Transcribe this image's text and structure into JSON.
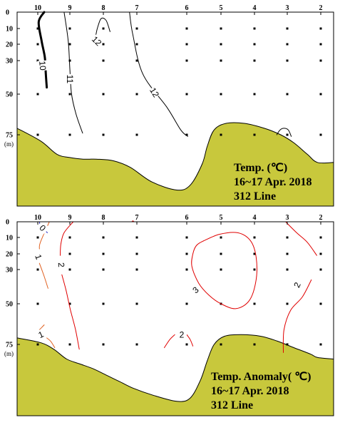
{
  "chart_data": [
    {
      "type": "contour",
      "id": "temp",
      "title_lines": [
        "Temp. (℃)",
        "16~17 Apr. 2018",
        "312 Line"
      ],
      "unit_label": "(m)",
      "stations": [
        "10",
        "9",
        "8",
        "7",
        "6",
        "5",
        "4",
        "3",
        "2"
      ],
      "depth_ticks": [
        "0",
        "10",
        "20",
        "30",
        "50",
        "75"
      ],
      "depths": [
        0,
        10,
        20,
        30,
        50,
        75
      ],
      "sample_depths": [
        10,
        20,
        30,
        50,
        75
      ],
      "colors": {
        "bottom": "#C8C83C",
        "contour": "#000000",
        "bold_contour": "#000000"
      },
      "contour_labels": [
        {
          "text": "10",
          "station": 9.85,
          "depth": 33,
          "rotate": 85
        },
        {
          "text": "11",
          "station": 9.0,
          "depth": 41,
          "rotate": 90
        },
        {
          "text": "12",
          "station": 8.2,
          "depth": 18,
          "rotate": 45
        },
        {
          "text": "12",
          "station": 6.65,
          "depth": 49,
          "rotate": 58
        }
      ],
      "contours": [
        {
          "level": 10,
          "bold": true,
          "points": [
            [
              10.2,
              0
            ],
            [
              10.03,
              6
            ],
            [
              9.88,
              18
            ],
            [
              9.78,
              28
            ],
            [
              9.75,
              38
            ],
            [
              9.72,
              46
            ]
          ]
        },
        {
          "level": 11,
          "points": [
            [
              9.18,
              0
            ],
            [
              9.05,
              18
            ],
            [
              9.0,
              35
            ],
            [
              8.95,
              50
            ],
            [
              8.82,
              62
            ],
            [
              8.62,
              74
            ]
          ]
        },
        {
          "level": 12,
          "points": [
            [
              7.8,
              12
            ],
            [
              7.92,
              5
            ],
            [
              8.07,
              4
            ],
            [
              8.18,
              10
            ],
            [
              8.23,
              15
            ]
          ]
        },
        {
          "level": 12,
          "points": [
            [
              7.22,
              0
            ],
            [
              7.12,
              14
            ],
            [
              6.88,
              38
            ],
            [
              6.4,
              58
            ],
            [
              6.12,
              72
            ],
            [
              5.97,
              76
            ]
          ]
        },
        {
          "level": 12,
          "points": [
            [
              3.32,
              75
            ],
            [
              3.22,
              72
            ],
            [
              3.1,
              71
            ],
            [
              2.97,
              72
            ],
            [
              2.88,
              76
            ]
          ]
        }
      ],
      "bottom_profile": [
        [
          10.3,
          71
        ],
        [
          9.9,
          79
        ],
        [
          9.4,
          87
        ],
        [
          9.0,
          89
        ],
        [
          8.6,
          90
        ],
        [
          8.2,
          90
        ],
        [
          7.7,
          91
        ],
        [
          7.2,
          95
        ],
        [
          6.7,
          104
        ],
        [
          6.2,
          109
        ],
        [
          5.9,
          106
        ],
        [
          5.55,
          93
        ],
        [
          5.4,
          82
        ],
        [
          5.2,
          72
        ],
        [
          4.85,
          68
        ],
        [
          4.3,
          68
        ],
        [
          3.7,
          71
        ],
        [
          3.2,
          75
        ],
        [
          2.8,
          80
        ],
        [
          2.4,
          87
        ],
        [
          1.9,
          92
        ],
        [
          1.72,
          92
        ]
      ]
    },
    {
      "type": "contour",
      "id": "anomaly",
      "title_lines": [
        "Temp. Anomaly( ℃)",
        "16~17 Apr. 2018",
        "312 Line"
      ],
      "unit_label": "(m)",
      "stations": [
        "10",
        "9",
        "8",
        "7",
        "6",
        "5",
        "4",
        "3",
        "2"
      ],
      "depth_ticks": [
        "0",
        "10",
        "20",
        "30",
        "50",
        "75"
      ],
      "depths": [
        0,
        10,
        20,
        30,
        50,
        75
      ],
      "sample_depths": [
        10,
        20,
        30,
        50,
        75
      ],
      "colors": {
        "bottom": "#C8C83C",
        "contour": "#E00000",
        "contour_dim": "#E06020",
        "neg": "#2020C0"
      },
      "contour_labels": [
        {
          "text": "0",
          "station": 10.15,
          "depth": 4,
          "rotate": 45
        },
        {
          "text": "1",
          "station": 10.02,
          "depth": 22,
          "rotate": 70
        },
        {
          "text": "2",
          "station": 9.27,
          "depth": 27,
          "rotate": 88
        },
        {
          "text": "3",
          "station": 5.74,
          "depth": 42,
          "rotate": -40
        },
        {
          "text": "2",
          "station": 2.7,
          "depth": 39,
          "rotate": -65
        },
        {
          "text": "1",
          "station": 9.9,
          "depth": 69,
          "rotate": -25
        },
        {
          "text": "2",
          "station": 6.1,
          "depth": 69,
          "rotate": 0
        }
      ],
      "contours": [
        {
          "level": 0,
          "neg": true,
          "points": [
            [
              10.3,
              7
            ],
            [
              10.2,
              5
            ],
            [
              10.08,
              2
            ],
            [
              9.95,
              0
            ]
          ]
        },
        {
          "level": 1,
          "dim": true,
          "points": [
            [
              9.64,
              0
            ],
            [
              9.92,
              13
            ],
            [
              10.05,
              17
            ]
          ]
        },
        {
          "level": 1,
          "dim": true,
          "points": [
            [
              10.05,
              26
            ],
            [
              10.2,
              34
            ],
            [
              10.32,
              41
            ]
          ]
        },
        {
          "level": 2,
          "points": [
            [
              8.9,
              0
            ],
            [
              9.18,
              7
            ],
            [
              9.28,
              14
            ],
            [
              9.3,
              21
            ]
          ]
        },
        {
          "level": 2,
          "points": [
            [
              9.25,
              33
            ],
            [
              9.12,
              42
            ],
            [
              8.98,
              54
            ],
            [
              8.83,
              66
            ],
            [
              8.72,
              78
            ]
          ]
        },
        {
          "level": 1,
          "dim": true,
          "points": [
            [
              10.2,
              63
            ],
            [
              10.05,
              66
            ]
          ]
        },
        {
          "level": 1,
          "dim": true,
          "points": [
            [
              9.72,
              71
            ],
            [
              9.6,
              73
            ],
            [
              9.47,
              77
            ]
          ]
        },
        {
          "level": 2,
          "points": [
            [
              7.08,
              0
            ],
            [
              7.12,
              -0.6
            ],
            [
              7.15,
              0
            ]
          ]
        },
        {
          "level": 2,
          "points": [
            [
              6.45,
              77
            ],
            [
              6.34,
              72
            ],
            [
              6.24,
              69
            ]
          ]
        },
        {
          "level": 2,
          "points": [
            [
              6.0,
              69
            ],
            [
              5.9,
              72
            ],
            [
              5.82,
              76
            ]
          ]
        },
        {
          "level": 3,
          "closed": true,
          "points": [
            [
              5.5,
              12
            ],
            [
              5.05,
              8
            ],
            [
              4.5,
              7
            ],
            [
              4.12,
              12
            ],
            [
              3.95,
              22
            ],
            [
              3.95,
              36
            ],
            [
              4.15,
              48
            ],
            [
              4.55,
              53
            ],
            [
              5.0,
              50
            ],
            [
              5.35,
              45
            ],
            [
              5.65,
              38
            ],
            [
              5.85,
              28
            ],
            [
              5.82,
              20
            ],
            [
              5.72,
              15
            ]
          ]
        },
        {
          "level": 2,
          "points": [
            [
              3.05,
              0
            ],
            [
              2.72,
              7
            ],
            [
              2.4,
              13
            ],
            [
              2.12,
              21
            ]
          ]
        },
        {
          "level": 2,
          "points": [
            [
              2.28,
              36
            ],
            [
              2.55,
              46
            ],
            [
              2.9,
              54
            ],
            [
              3.1,
              66
            ],
            [
              3.12,
              80
            ]
          ]
        }
      ],
      "bottom_profile": [
        [
          10.3,
          71
        ],
        [
          9.9,
          74
        ],
        [
          9.5,
          78
        ],
        [
          9.1,
          84
        ],
        [
          8.7,
          87
        ],
        [
          8.3,
          90
        ],
        [
          7.9,
          94
        ],
        [
          7.5,
          98
        ],
        [
          7.1,
          102
        ],
        [
          6.7,
          106
        ],
        [
          6.2,
          110
        ],
        [
          5.9,
          108
        ],
        [
          5.6,
          97
        ],
        [
          5.4,
          85
        ],
        [
          5.2,
          75
        ],
        [
          4.9,
          70
        ],
        [
          4.4,
          69
        ],
        [
          3.8,
          70
        ],
        [
          3.3,
          73
        ],
        [
          2.8,
          77
        ],
        [
          2.3,
          81
        ],
        [
          1.9,
          83
        ],
        [
          1.72,
          84
        ]
      ]
    }
  ]
}
